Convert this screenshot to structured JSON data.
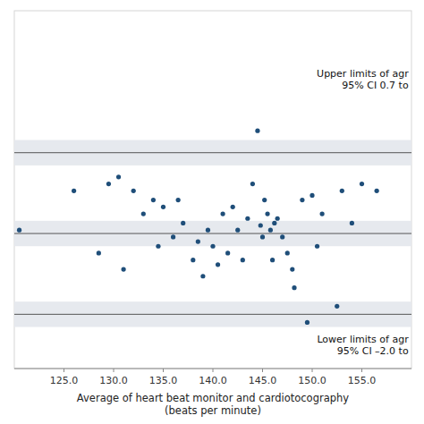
{
  "chart_data": {
    "type": "scatter",
    "xlabel": "Average of heart beat monitor and cardiotocography\n(beats per minute)",
    "xlim": [
      120,
      160
    ],
    "ylim": [
      -6.5,
      9.0
    ],
    "xticks": [
      {
        "value": 125.0,
        "label": "125.0"
      },
      {
        "value": 130.0,
        "label": "130.0"
      },
      {
        "value": 135.0,
        "label": "135.0"
      },
      {
        "value": 140.0,
        "label": "140.0"
      },
      {
        "value": 145.0,
        "label": "145.0"
      },
      {
        "value": 150.0,
        "label": "150.0"
      },
      {
        "value": 155.0,
        "label": "155.0"
      }
    ],
    "tick_labels": "x",
    "grid": false,
    "hlines": [
      2.85,
      -0.65,
      -4.15
    ],
    "bands": [
      [
        2.3,
        3.4
      ],
      [
        -1.2,
        -0.1
      ],
      [
        -4.7,
        -3.6
      ]
    ],
    "annotations": [
      {
        "text": "Upper limits of agr\n95% CI 0.7 to",
        "x": 159.7,
        "y": 6.0
      },
      {
        "text": "Lower limits of agr\n95% CI –2.0 to",
        "x": 159.7,
        "y": -5.5
      }
    ],
    "x": [
      120.5,
      126.0,
      128.5,
      129.5,
      130.5,
      131.0,
      132.0,
      133.0,
      134.0,
      134.5,
      135.0,
      136.0,
      136.5,
      137.0,
      138.0,
      138.5,
      139.0,
      139.5,
      140.0,
      140.5,
      141.0,
      141.5,
      142.0,
      142.5,
      143.0,
      143.5,
      144.0,
      144.5,
      144.8,
      145.0,
      145.2,
      145.5,
      145.8,
      146.0,
      146.2,
      146.5,
      147.0,
      147.5,
      148.0,
      148.2,
      149.0,
      149.5,
      150.0,
      150.5,
      151.0,
      152.5,
      153.0,
      154.0,
      155.0,
      156.5
    ],
    "values": [
      -0.5,
      1.2,
      -1.5,
      1.5,
      1.8,
      -2.2,
      1.2,
      0.2,
      0.8,
      -1.2,
      0.5,
      -0.8,
      0.8,
      -0.2,
      -1.8,
      -1.0,
      -2.5,
      -0.5,
      -1.2,
      -2.0,
      0.2,
      -1.5,
      0.5,
      -0.5,
      -1.8,
      0.0,
      1.5,
      3.8,
      -0.3,
      -0.8,
      0.8,
      0.2,
      -0.5,
      -1.8,
      -0.2,
      0.0,
      -0.8,
      -1.5,
      -2.2,
      -3.0,
      0.8,
      -4.5,
      1.0,
      -1.2,
      0.2,
      -3.8,
      1.2,
      -0.2,
      1.5,
      1.2
    ]
  }
}
